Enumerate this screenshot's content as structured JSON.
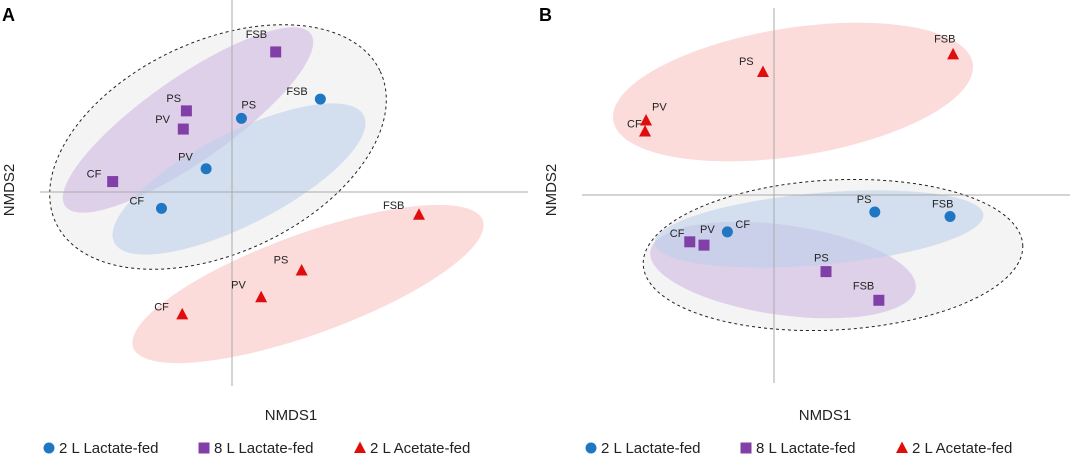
{
  "colors": {
    "lactate_2l": "#1f77c4",
    "lactate_8l": "#8040a8",
    "acetate_2l": "#e00d0d",
    "ellipse_blue": "#bcd0ea",
    "ellipse_purple": "#d8c4e6",
    "ellipse_red": "#fbcfcf",
    "ellipse_grey": "#f2f2f2"
  },
  "chart_data": [
    {
      "panel": "A",
      "type": "scatter",
      "title": "",
      "xlabel": "NMDS1",
      "ylabel": "NMDS2",
      "grid": false,
      "xlim": [
        -1.9,
        2.8
      ],
      "ylim": [
        -1.9,
        1.6
      ],
      "series": [
        {
          "name": "2 L Lactate-fed",
          "marker": "circle",
          "color": "#1f77c4",
          "points": [
            {
              "label": "CF",
              "x": -0.73,
              "y": -0.27
            },
            {
              "label": "PV",
              "x": -0.3,
              "y": 0.1
            },
            {
              "label": "PS",
              "x": 0.04,
              "y": 0.57
            },
            {
              "label": "FSB",
              "x": 0.8,
              "y": 0.75
            }
          ]
        },
        {
          "name": "8 L Lactate-fed",
          "marker": "square",
          "color": "#8040a8",
          "points": [
            {
              "label": "CF",
              "x": -1.2,
              "y": -0.02
            },
            {
              "label": "PV",
              "x": -0.52,
              "y": 0.47
            },
            {
              "label": "PS",
              "x": -0.49,
              "y": 0.64
            },
            {
              "label": "FSB",
              "x": 0.37,
              "y": 1.19
            }
          ]
        },
        {
          "name": "2 L Acetate-fed",
          "marker": "triangle",
          "color": "#e00d0d",
          "points": [
            {
              "label": "CF",
              "x": -0.53,
              "y": -1.26
            },
            {
              "label": "PV",
              "x": 0.23,
              "y": -1.1
            },
            {
              "label": "PS",
              "x": 0.62,
              "y": -0.85
            },
            {
              "label": "FSB",
              "x": 1.75,
              "y": -0.33
            }
          ]
        }
      ]
    },
    {
      "panel": "B",
      "type": "scatter",
      "title": "",
      "xlabel": "NMDS1",
      "ylabel": "NMDS2",
      "grid": false,
      "xlim": [
        -1.9,
        2.9
      ],
      "ylim": [
        -1.7,
        1.7
      ],
      "series": [
        {
          "name": "2 L Lactate-fed",
          "marker": "circle",
          "color": "#1f77c4",
          "points": [
            {
              "label": "CF",
              "x": -0.47,
              "y": -0.33
            },
            {
              "label": "PS",
              "x": 0.98,
              "y": -0.15
            },
            {
              "label": "FSB",
              "x": 1.72,
              "y": -0.19
            }
          ]
        },
        {
          "name": "8 L Lactate-fed",
          "marker": "square",
          "color": "#8040a8",
          "points": [
            {
              "label": "CF",
              "x": -0.84,
              "y": -0.42
            },
            {
              "label": "PV",
              "x": -0.7,
              "y": -0.45
            },
            {
              "label": "PS",
              "x": 0.5,
              "y": -0.69
            },
            {
              "label": "FSB",
              "x": 1.02,
              "y": -0.95
            }
          ]
        },
        {
          "name": "2 L Acetate-fed",
          "marker": "triangle",
          "color": "#e00d0d",
          "points": [
            {
              "label": "CF",
              "x": -1.28,
              "y": 0.58
            },
            {
              "label": "PV",
              "x": -1.27,
              "y": 0.68
            },
            {
              "label": "PS",
              "x": -0.12,
              "y": 1.12
            },
            {
              "label": "FSB",
              "x": 1.75,
              "y": 1.28
            }
          ]
        }
      ]
    }
  ],
  "legend": [
    {
      "label": "2 L Lactate-fed",
      "marker": "circle",
      "color": "#1f77c4"
    },
    {
      "label": "8 L Lactate-fed",
      "marker": "square",
      "color": "#8040a8"
    },
    {
      "label": "2 L Acetate-fed",
      "marker": "triangle",
      "color": "#e00d0d"
    }
  ]
}
